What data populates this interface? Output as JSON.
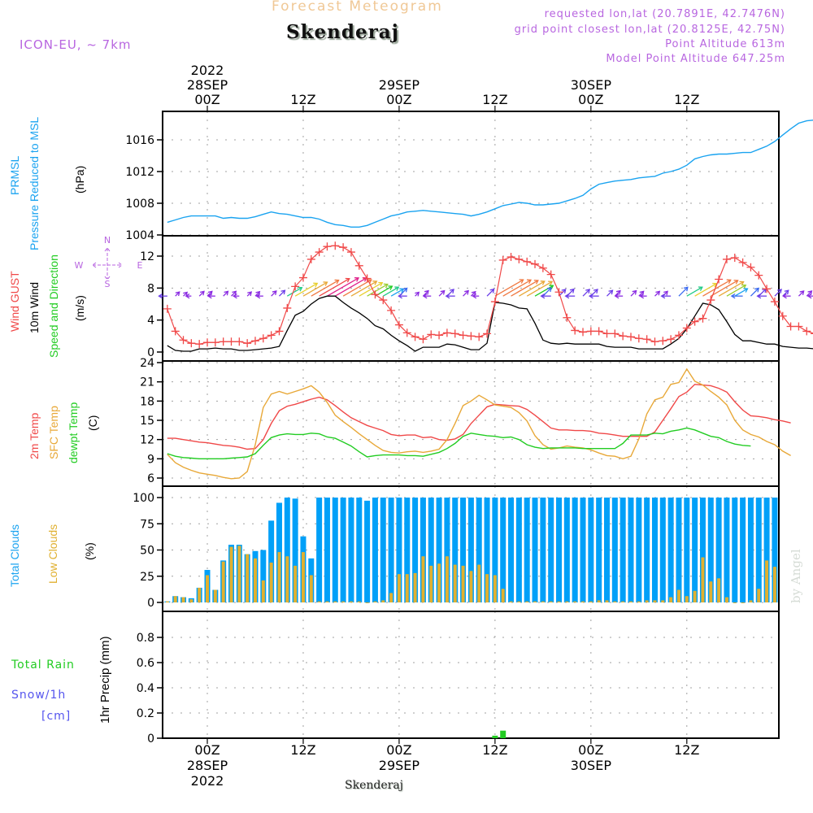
{
  "header": {
    "title": "Forecast Meteogram",
    "location": "Skenderaj",
    "model": "ICON-EU, ~ 7km",
    "requested": "requested lon,lat (20.7891E, 42.7476N)",
    "grid_point": "grid point closest lon,lat (20.8125E, 42.75N)",
    "point_altitude": "Point Altitude 613m",
    "model_altitude": "Model Point Altitude 647.25m"
  },
  "footer": {
    "location": "Skenderaj"
  },
  "watermark": "by Angel",
  "top_axis": {
    "labels": [
      {
        "hour": 0,
        "lines": [
          "2022",
          "28SEP",
          "00Z"
        ]
      },
      {
        "hour": 12,
        "lines": [
          "12Z"
        ]
      },
      {
        "hour": 24,
        "lines": [
          "29SEP",
          "00Z"
        ]
      },
      {
        "hour": 36,
        "lines": [
          "12Z"
        ]
      },
      {
        "hour": 48,
        "lines": [
          "30SEP",
          "00Z"
        ]
      },
      {
        "hour": 60,
        "lines": [
          "12Z"
        ]
      }
    ]
  },
  "bottom_axis": {
    "labels": [
      {
        "hour": 0,
        "lines": [
          "00Z",
          "28SEP",
          "2022"
        ]
      },
      {
        "hour": 12,
        "lines": [
          "12Z"
        ]
      },
      {
        "hour": 24,
        "lines": [
          "00Z",
          "29SEP"
        ]
      },
      {
        "hour": 36,
        "lines": [
          "12Z"
        ]
      },
      {
        "hour": 48,
        "lines": [
          "00Z",
          "30SEP"
        ]
      },
      {
        "hour": 60,
        "lines": [
          "12Z"
        ]
      }
    ]
  },
  "panel_labels": {
    "pressure": {
      "line1": "PRMSL",
      "line2": "Pressure Reduced to MSL",
      "unit": "(hPa)"
    },
    "wind": {
      "gust": "Wind GUST",
      "wind10": "10m Wind",
      "dir": "Speed and Direction",
      "unit": "(m/s)",
      "compass": {
        "n": "N",
        "s": "S",
        "w": "W",
        "e": "E"
      }
    },
    "temp": {
      "t2m": "2m Temp",
      "sfc": "SFC Temp",
      "dew": "dewpt Temp",
      "unit": "(C)"
    },
    "clouds": {
      "total": "Total Clouds",
      "low": "Low Clouds",
      "unit": "(%)"
    },
    "precip": {
      "rain": "Total   Rain",
      "snow": "Snow/1h",
      "snow_unit": "[cm]",
      "axis": "1hr Precip (mm)"
    }
  },
  "colors": {
    "pressure": "#1aa3f0",
    "gust": "#f04848",
    "wind10": "#000000",
    "t2m": "#f04848",
    "sfc": "#e8a838",
    "dew": "#22cc22",
    "total_clouds": "#00a0f8",
    "low_clouds": "#e0b030",
    "rain": "#22cc22",
    "snow": "#5555ee",
    "meta": "#b866e0"
  },
  "chart_data": [
    {
      "type": "line",
      "title": "PRMSL Pressure Reduced to MSL",
      "ylabel": "(hPa)",
      "ylim": [
        1004,
        1020
      ],
      "yticks": [
        1004,
        1008,
        1012,
        1016
      ],
      "x_start_hour": -5,
      "x_step_hours": 1,
      "series": [
        {
          "name": "PRMSL",
          "values": [
            1005.6,
            1005.9,
            1006.2,
            1006.4,
            1006.4,
            1006.4,
            1006.4,
            1006.1,
            1006.2,
            1006.1,
            1006.1,
            1006.3,
            1006.6,
            1006.9,
            1006.7,
            1006.6,
            1006.4,
            1006.2,
            1006.2,
            1006.0,
            1005.6,
            1005.3,
            1005.2,
            1005.0,
            1005.0,
            1005.2,
            1005.6,
            1006.0,
            1006.4,
            1006.6,
            1006.9,
            1007.0,
            1007.1,
            1007.0,
            1006.9,
            1006.8,
            1006.7,
            1006.6,
            1006.4,
            1006.6,
            1006.9,
            1007.3,
            1007.7,
            1007.9,
            1008.1,
            1008.0,
            1007.8,
            1007.8,
            1007.9,
            1008.0,
            1008.3,
            1008.6,
            1009.0,
            1009.8,
            1010.4,
            1010.6,
            1010.8,
            1010.9,
            1011.0,
            1011.2,
            1011.3,
            1011.4,
            1011.8,
            1012.0,
            1012.3,
            1012.8,
            1013.6,
            1013.9,
            1014.1,
            1014.2,
            1014.2,
            1014.3,
            1014.4,
            1014.4,
            1014.8,
            1015.2,
            1015.8,
            1016.6,
            1017.4,
            1018.1,
            1018.4,
            1018.5,
            1018.6,
            1018.5,
            1018.5
          ]
        }
      ]
    },
    {
      "type": "line",
      "title": "Wind GUST / 10m Wind Speed and Direction",
      "ylabel": "(m/s)",
      "ylim": [
        0,
        14
      ],
      "yticks": [
        0,
        4,
        8,
        12
      ],
      "x_start_hour": -5,
      "x_step_hours": 1,
      "series": [
        {
          "name": "Wind GUST",
          "values": [
            5.4,
            2.6,
            1.5,
            1.1,
            1.0,
            1.2,
            1.2,
            1.3,
            1.3,
            1.3,
            1.1,
            1.4,
            1.7,
            2.1,
            2.6,
            5.5,
            8.2,
            9.3,
            11.6,
            12.5,
            13.2,
            13.3,
            13.1,
            12.5,
            10.8,
            9.2,
            7.2,
            6.5,
            5.2,
            3.4,
            2.4,
            1.9,
            1.6,
            2.2,
            2.1,
            2.4,
            2.3,
            2.1,
            2.0,
            1.9,
            2.3,
            6.3,
            11.5,
            11.9,
            11.6,
            11.3,
            11.0,
            10.5,
            9.7,
            7.5,
            4.3,
            2.7,
            2.5,
            2.6,
            2.6,
            2.3,
            2.3,
            2.0,
            1.9,
            1.7,
            1.6,
            1.3,
            1.4,
            1.6,
            2.1,
            3.0,
            3.8,
            4.2,
            6.5,
            9.1,
            11.6,
            11.8,
            11.2,
            10.6,
            9.6,
            7.9,
            6.3,
            4.5,
            3.2,
            3.2,
            2.6,
            2.3,
            2.2,
            2.0,
            1.8
          ]
        },
        {
          "name": "10m Wind",
          "values": [
            0.8,
            0.2,
            0.1,
            0.1,
            0.4,
            0.4,
            0.5,
            0.4,
            0.4,
            0.2,
            0.2,
            0.3,
            0.4,
            0.5,
            0.7,
            2.7,
            4.6,
            5.1,
            6.0,
            6.7,
            7.0,
            7.0,
            6.2,
            5.5,
            4.9,
            4.2,
            3.3,
            2.9,
            2.1,
            1.4,
            0.8,
            0.1,
            0.6,
            0.6,
            0.6,
            1.0,
            0.9,
            0.6,
            0.3,
            0.3,
            1.1,
            6.2,
            6.1,
            5.9,
            5.5,
            5.4,
            3.6,
            1.5,
            1.1,
            1.0,
            1.1,
            1.0,
            1.0,
            1.0,
            1.0,
            0.7,
            0.6,
            0.6,
            0.6,
            0.4,
            0.4,
            0.4,
            0.4,
            1.0,
            1.7,
            2.9,
            4.5,
            6.1,
            5.9,
            5.3,
            3.8,
            2.2,
            1.4,
            1.4,
            1.2,
            1.0,
            1.0,
            0.7,
            0.6,
            0.5,
            0.5,
            0.4,
            0.4,
            0.4,
            0.4
          ]
        }
      ],
      "wind_arrows_note": "Direction arrows plotted at y=7 (W–E/N–S compass), colour-coded by speed; mostly SW (pointing NE) during the three afternoon gust peaks, light variable winds overnight."
    },
    {
      "type": "line",
      "title": "2m Temp / SFC Temp / dewpt Temp",
      "ylabel": "(C)",
      "ylim": [
        6,
        24
      ],
      "yticks": [
        6,
        9,
        12,
        15,
        18,
        21,
        24
      ],
      "x_start_hour": -5,
      "x_step_hours": 1,
      "series": [
        {
          "name": "2m Temp",
          "values": [
            12.2,
            12.2,
            12.0,
            11.8,
            11.6,
            11.5,
            11.3,
            11.1,
            11.0,
            10.8,
            10.5,
            10.6,
            12.0,
            14.5,
            16.5,
            17.2,
            17.5,
            17.9,
            18.3,
            18.6,
            18.2,
            17.3,
            16.3,
            15.4,
            14.8,
            14.2,
            13.8,
            13.4,
            12.8,
            12.6,
            12.7,
            12.7,
            12.3,
            12.4,
            12.0,
            11.9,
            12.1,
            12.8,
            14.5,
            15.8,
            17.1,
            17.5,
            17.4,
            17.3,
            17.2,
            16.7,
            15.8,
            14.8,
            13.8,
            13.5,
            13.5,
            13.4,
            13.4,
            13.3,
            13.0,
            12.9,
            12.7,
            12.5,
            12.5,
            12.5,
            12.5,
            13.2,
            15.0,
            16.8,
            18.7,
            19.4,
            20.6,
            20.5,
            20.4,
            20.0,
            19.4,
            17.9,
            16.6,
            15.7,
            15.6,
            15.4,
            15.1,
            14.9,
            14.6
          ]
        },
        {
          "name": "SFC Temp",
          "values": [
            9.7,
            8.4,
            7.7,
            7.2,
            6.8,
            6.6,
            6.4,
            6.1,
            5.9,
            6.0,
            7.0,
            11.2,
            17.0,
            19.1,
            19.5,
            19.1,
            19.5,
            19.9,
            20.4,
            19.4,
            17.8,
            15.8,
            14.8,
            13.9,
            12.9,
            12.0,
            11.1,
            10.3,
            10.0,
            9.9,
            10.1,
            10.2,
            10.0,
            10.2,
            10.5,
            12.0,
            14.5,
            17.3,
            18.0,
            18.9,
            18.2,
            17.4,
            17.2,
            17.0,
            16.2,
            14.9,
            12.6,
            11.2,
            10.5,
            10.7,
            11.0,
            10.8,
            10.7,
            10.4,
            9.9,
            9.5,
            9.4,
            9.0,
            9.4,
            12.1,
            16.0,
            18.2,
            18.6,
            20.6,
            20.9,
            23.0,
            21.1,
            20.5,
            19.5,
            18.6,
            17.4,
            15.0,
            13.5,
            12.8,
            12.4,
            11.7,
            11.2,
            10.2,
            9.5
          ]
        },
        {
          "name": "dewpt Temp",
          "values": [
            9.8,
            9.4,
            9.2,
            9.1,
            9.0,
            9.0,
            9.0,
            9.0,
            9.1,
            9.2,
            9.3,
            9.8,
            11.1,
            12.3,
            12.7,
            12.9,
            12.8,
            12.8,
            13.0,
            12.9,
            12.4,
            12.2,
            11.6,
            11.0,
            10.1,
            9.3,
            9.5,
            9.6,
            9.6,
            9.6,
            9.5,
            9.5,
            9.4,
            9.7,
            10.0,
            10.6,
            11.4,
            12.5,
            13.0,
            12.8,
            12.6,
            12.5,
            12.3,
            12.4,
            12.0,
            11.2,
            10.8,
            10.6,
            10.7,
            10.7,
            10.7,
            10.7,
            10.6,
            10.6,
            10.6,
            10.6,
            10.6,
            11.4,
            12.7,
            12.7,
            12.7,
            13.0,
            12.9,
            13.3,
            13.5,
            13.8,
            13.5,
            13.0,
            12.5,
            12.3,
            11.7,
            11.3,
            11.1,
            11.0
          ]
        }
      ]
    },
    {
      "type": "bar",
      "title": "Total Clouds / Low Clouds",
      "ylabel": "(%)",
      "ylim": [
        0,
        100
      ],
      "yticks": [
        0,
        25,
        50,
        75,
        100
      ],
      "x_start_hour": -5,
      "x_step_hours": 1,
      "series": [
        {
          "name": "Total Clouds",
          "values": [
            1,
            6,
            5,
            4,
            14,
            31,
            12,
            40,
            55,
            55,
            46,
            49,
            50,
            78,
            95,
            100,
            99,
            63,
            42,
            100,
            100,
            100,
            100,
            100,
            100,
            97,
            100,
            100,
            100,
            100,
            100,
            100,
            100,
            100,
            100,
            100,
            100,
            100,
            100,
            100,
            100,
            100,
            100,
            100,
            100,
            100,
            100,
            100,
            100,
            100,
            100,
            100,
            100,
            100,
            100,
            100,
            100,
            100,
            100,
            100,
            100,
            100,
            100,
            100,
            100,
            100,
            100,
            100,
            100,
            100,
            100,
            100,
            100,
            100,
            100,
            100,
            100,
            100,
            95,
            69,
            56,
            52,
            100,
            100,
            100
          ]
        },
        {
          "name": "Low Clouds",
          "values": [
            1,
            6,
            5,
            3,
            14,
            26,
            12,
            39,
            53,
            54,
            46,
            42,
            21,
            38,
            48,
            44,
            35,
            48,
            26,
            1,
            1,
            1,
            1,
            1,
            1,
            0,
            1,
            2,
            9,
            27,
            27,
            28,
            44,
            35,
            37,
            44,
            36,
            35,
            30,
            36,
            27,
            26,
            13,
            1,
            1,
            1,
            1,
            1,
            1,
            1,
            1,
            1,
            1,
            1,
            2,
            2,
            1,
            1,
            1,
            1,
            2,
            2,
            2,
            5,
            12,
            6,
            11,
            43,
            20,
            23,
            5,
            0,
            0,
            2,
            13,
            40,
            34,
            18,
            20
          ]
        }
      ]
    },
    {
      "type": "bar",
      "title": "1hr Precip",
      "ylabel": "1hr Precip (mm)",
      "ylim": [
        0,
        1.0
      ],
      "yticks": [
        0,
        0.2,
        0.4,
        0.6,
        0.8
      ],
      "series": [
        {
          "name": "Total Rain",
          "points": [
            {
              "hour": 36,
              "value": 0.02
            },
            {
              "hour": 37,
              "value": 0.06
            }
          ]
        },
        {
          "name": "Snow/1h",
          "points": []
        }
      ]
    }
  ]
}
